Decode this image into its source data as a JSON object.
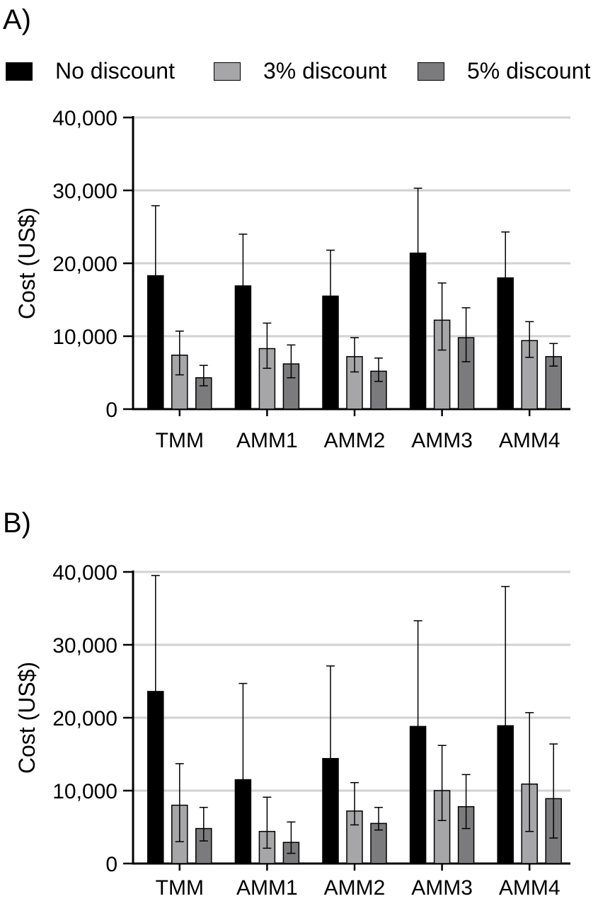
{
  "panels": [
    {
      "label": "A)"
    },
    {
      "label": "B)"
    }
  ],
  "legend": [
    {
      "name": "No discount",
      "color": "#000000"
    },
    {
      "name": "3% discount",
      "color": "#a6a6a8"
    },
    {
      "name": "5% discount",
      "color": "#7b7b7d"
    }
  ],
  "chart_data": [
    {
      "type": "bar",
      "panel": "A)",
      "categories": [
        "TMM",
        "AMM1",
        "AMM2",
        "AMM3",
        "AMM4"
      ],
      "ylabel": "Cost (US$)",
      "xlabel": "",
      "ylim": [
        0,
        40000
      ],
      "yticks": [
        "0",
        "10,000",
        "20,000",
        "30,000",
        "40,000"
      ],
      "ytick_values": [
        0,
        10000,
        20000,
        30000,
        40000
      ],
      "grid": "horizontal",
      "legend_position": "top",
      "series": [
        {
          "name": "No discount",
          "color": "#000000",
          "values": [
            18300,
            16900,
            15500,
            21400,
            18000
          ],
          "error_upper": [
            27900,
            24000,
            21800,
            30300,
            24300
          ],
          "error_lower": [
            18300,
            16900,
            15500,
            21400,
            18000
          ]
        },
        {
          "name": "3% discount",
          "color": "#a6a6a8",
          "values": [
            7400,
            8300,
            7200,
            12200,
            9400
          ],
          "error_upper": [
            10700,
            11800,
            9800,
            17300,
            12000
          ],
          "error_lower": [
            4700,
            5600,
            5100,
            8100,
            7100
          ]
        },
        {
          "name": "5% discount",
          "color": "#7b7b7d",
          "values": [
            4300,
            6200,
            5200,
            9800,
            7200
          ],
          "error_upper": [
            6000,
            8800,
            7000,
            13900,
            9000
          ],
          "error_lower": [
            3200,
            4300,
            3800,
            6500,
            5900
          ]
        }
      ]
    },
    {
      "type": "bar",
      "panel": "B)",
      "categories": [
        "TMM",
        "AMM1",
        "AMM2",
        "AMM3",
        "AMM4"
      ],
      "ylabel": "Cost (US$)",
      "xlabel": "",
      "ylim": [
        0,
        40000
      ],
      "yticks": [
        "0",
        "10,000",
        "20,000",
        "30,000",
        "40,000"
      ],
      "ytick_values": [
        0,
        10000,
        20000,
        30000,
        40000
      ],
      "grid": "horizontal",
      "legend_position": "top",
      "series": [
        {
          "name": "No discount",
          "color": "#000000",
          "values": [
            23600,
            11500,
            14400,
            18800,
            18900
          ],
          "error_upper": [
            39500,
            24700,
            27100,
            33300,
            38000
          ],
          "error_lower": [
            23600,
            11500,
            14400,
            18800,
            18900
          ]
        },
        {
          "name": "3% discount",
          "color": "#a6a6a8",
          "values": [
            8000,
            4400,
            7200,
            10000,
            10900
          ],
          "error_upper": [
            13700,
            9100,
            11100,
            16200,
            20700
          ],
          "error_lower": [
            3000,
            2100,
            5300,
            5900,
            4400
          ]
        },
        {
          "name": "5% discount",
          "color": "#7b7b7d",
          "values": [
            4800,
            2900,
            5500,
            7800,
            8900
          ],
          "error_upper": [
            7700,
            5700,
            7700,
            12200,
            16400
          ],
          "error_lower": [
            3100,
            1400,
            4600,
            4800,
            3500
          ]
        }
      ]
    }
  ]
}
